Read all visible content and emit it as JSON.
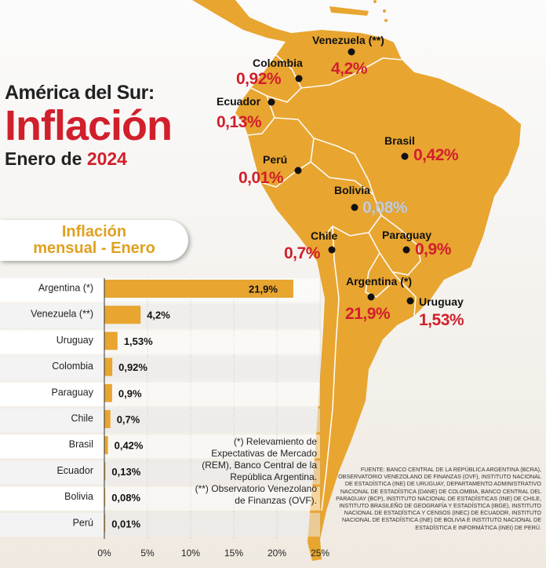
{
  "header": {
    "region": "América del Sur:",
    "title": "Inflación",
    "period_prefix": "Enero de",
    "period_year": "2024"
  },
  "badge": {
    "line1": "Inflación",
    "line2": "mensual - Enero"
  },
  "map": {
    "land_color": "#e8a530",
    "countries": [
      {
        "id": "venezuela",
        "label": "Venezuela",
        "mark": "(**)",
        "value": "4,2%",
        "color": "#d11f2c"
      },
      {
        "id": "colombia",
        "label": "Colombia",
        "value": "0,92%",
        "color": "#d11f2c"
      },
      {
        "id": "ecuador",
        "label": "Ecuador",
        "value": "0,13%",
        "color": "#d11f2c"
      },
      {
        "id": "brasil",
        "label": "Brasil",
        "value": "0,42%",
        "color": "#d11f2c"
      },
      {
        "id": "peru",
        "label": "Perú",
        "value": "0,01%",
        "color": "#d11f2c"
      },
      {
        "id": "bolivia",
        "label": "Bolivia",
        "value": "0,08%",
        "color": "#c7ccd3"
      },
      {
        "id": "chile",
        "label": "Chile",
        "value": "0,7%",
        "color": "#d11f2c"
      },
      {
        "id": "paraguay",
        "label": "Paraguay",
        "value": "0,9%",
        "color": "#d11f2c"
      },
      {
        "id": "argentina",
        "label": "Argentina",
        "mark": "(*)",
        "value": "21,9%",
        "color": "#d11f2c"
      },
      {
        "id": "uruguay",
        "label": "Uruguay",
        "value": "1,53%",
        "color": "#d11f2c"
      }
    ]
  },
  "chart_data": {
    "type": "bar",
    "orientation": "horizontal",
    "categories": [
      "Argentina (*)",
      "Venezuela (**)",
      "Uruguay",
      "Colombia",
      "Paraguay",
      "Chile",
      "Brasil",
      "Ecuador",
      "Bolivia",
      "Perú"
    ],
    "values": [
      21.9,
      4.2,
      1.53,
      0.92,
      0.9,
      0.7,
      0.42,
      0.13,
      0.08,
      0.01
    ],
    "value_labels": [
      "21,9%",
      "4,2%",
      "1,53%",
      "0,92%",
      "0,9%",
      "0,7%",
      "0,42%",
      "0,13%",
      "0,08%",
      "0,01%"
    ],
    "xlim": [
      0,
      25
    ],
    "x_ticks": [
      "0%",
      "5%",
      "10%",
      "15%",
      "20%",
      "25%"
    ],
    "x_tick_values": [
      0,
      5,
      10,
      15,
      20,
      25
    ],
    "bar_color": "#e8a530",
    "highlight_category": "Bolivia",
    "highlight_color": "#d11f2c",
    "grid": true
  },
  "notes": {
    "line1": "(*) Relevamiento de Expectativas de Mercado (REM), Banco Central de la República Argentina.",
    "line2": "(**) Observatorio Venezolano de Finanzas (OVF)."
  },
  "source": "FUENTE: BANCO CENTRAL DE LA REPÚBLICA ARGENTINA (BCRA), OBSERVATORIO VENEZOLANO DE FINANZAS (OVF), INSTITUTO NACIONAL DE ESTADÍSTICA (INE) DE URUGUAY, DEPARTAMENTO ADMINISTRATIVO NACIONAL DE ESTADÍSTICA (DANE) DE COLOMBIA, BANCO CENTRAL DEL PARAGUAY (BCP), INSTITUTO NACIONAL DE ESTADÍSTICAS (INE) DE CHILE, INSTITUTO BRASILEÑO DE GEOGRAFÍA Y ESTADÍSTICA (IBGE), INSTITUTO NACIONAL DE ESTADÍSTICA Y CENSOS (INEC) DE ECUADOR, INSTITUTO NACIONAL DE ESTADÍSTICA (INE) DE BOLIVIA E INSTITUTO NACIONAL DE ESTADÍSTICA E INFORMÁTICA (INEI) DE PERÚ."
}
